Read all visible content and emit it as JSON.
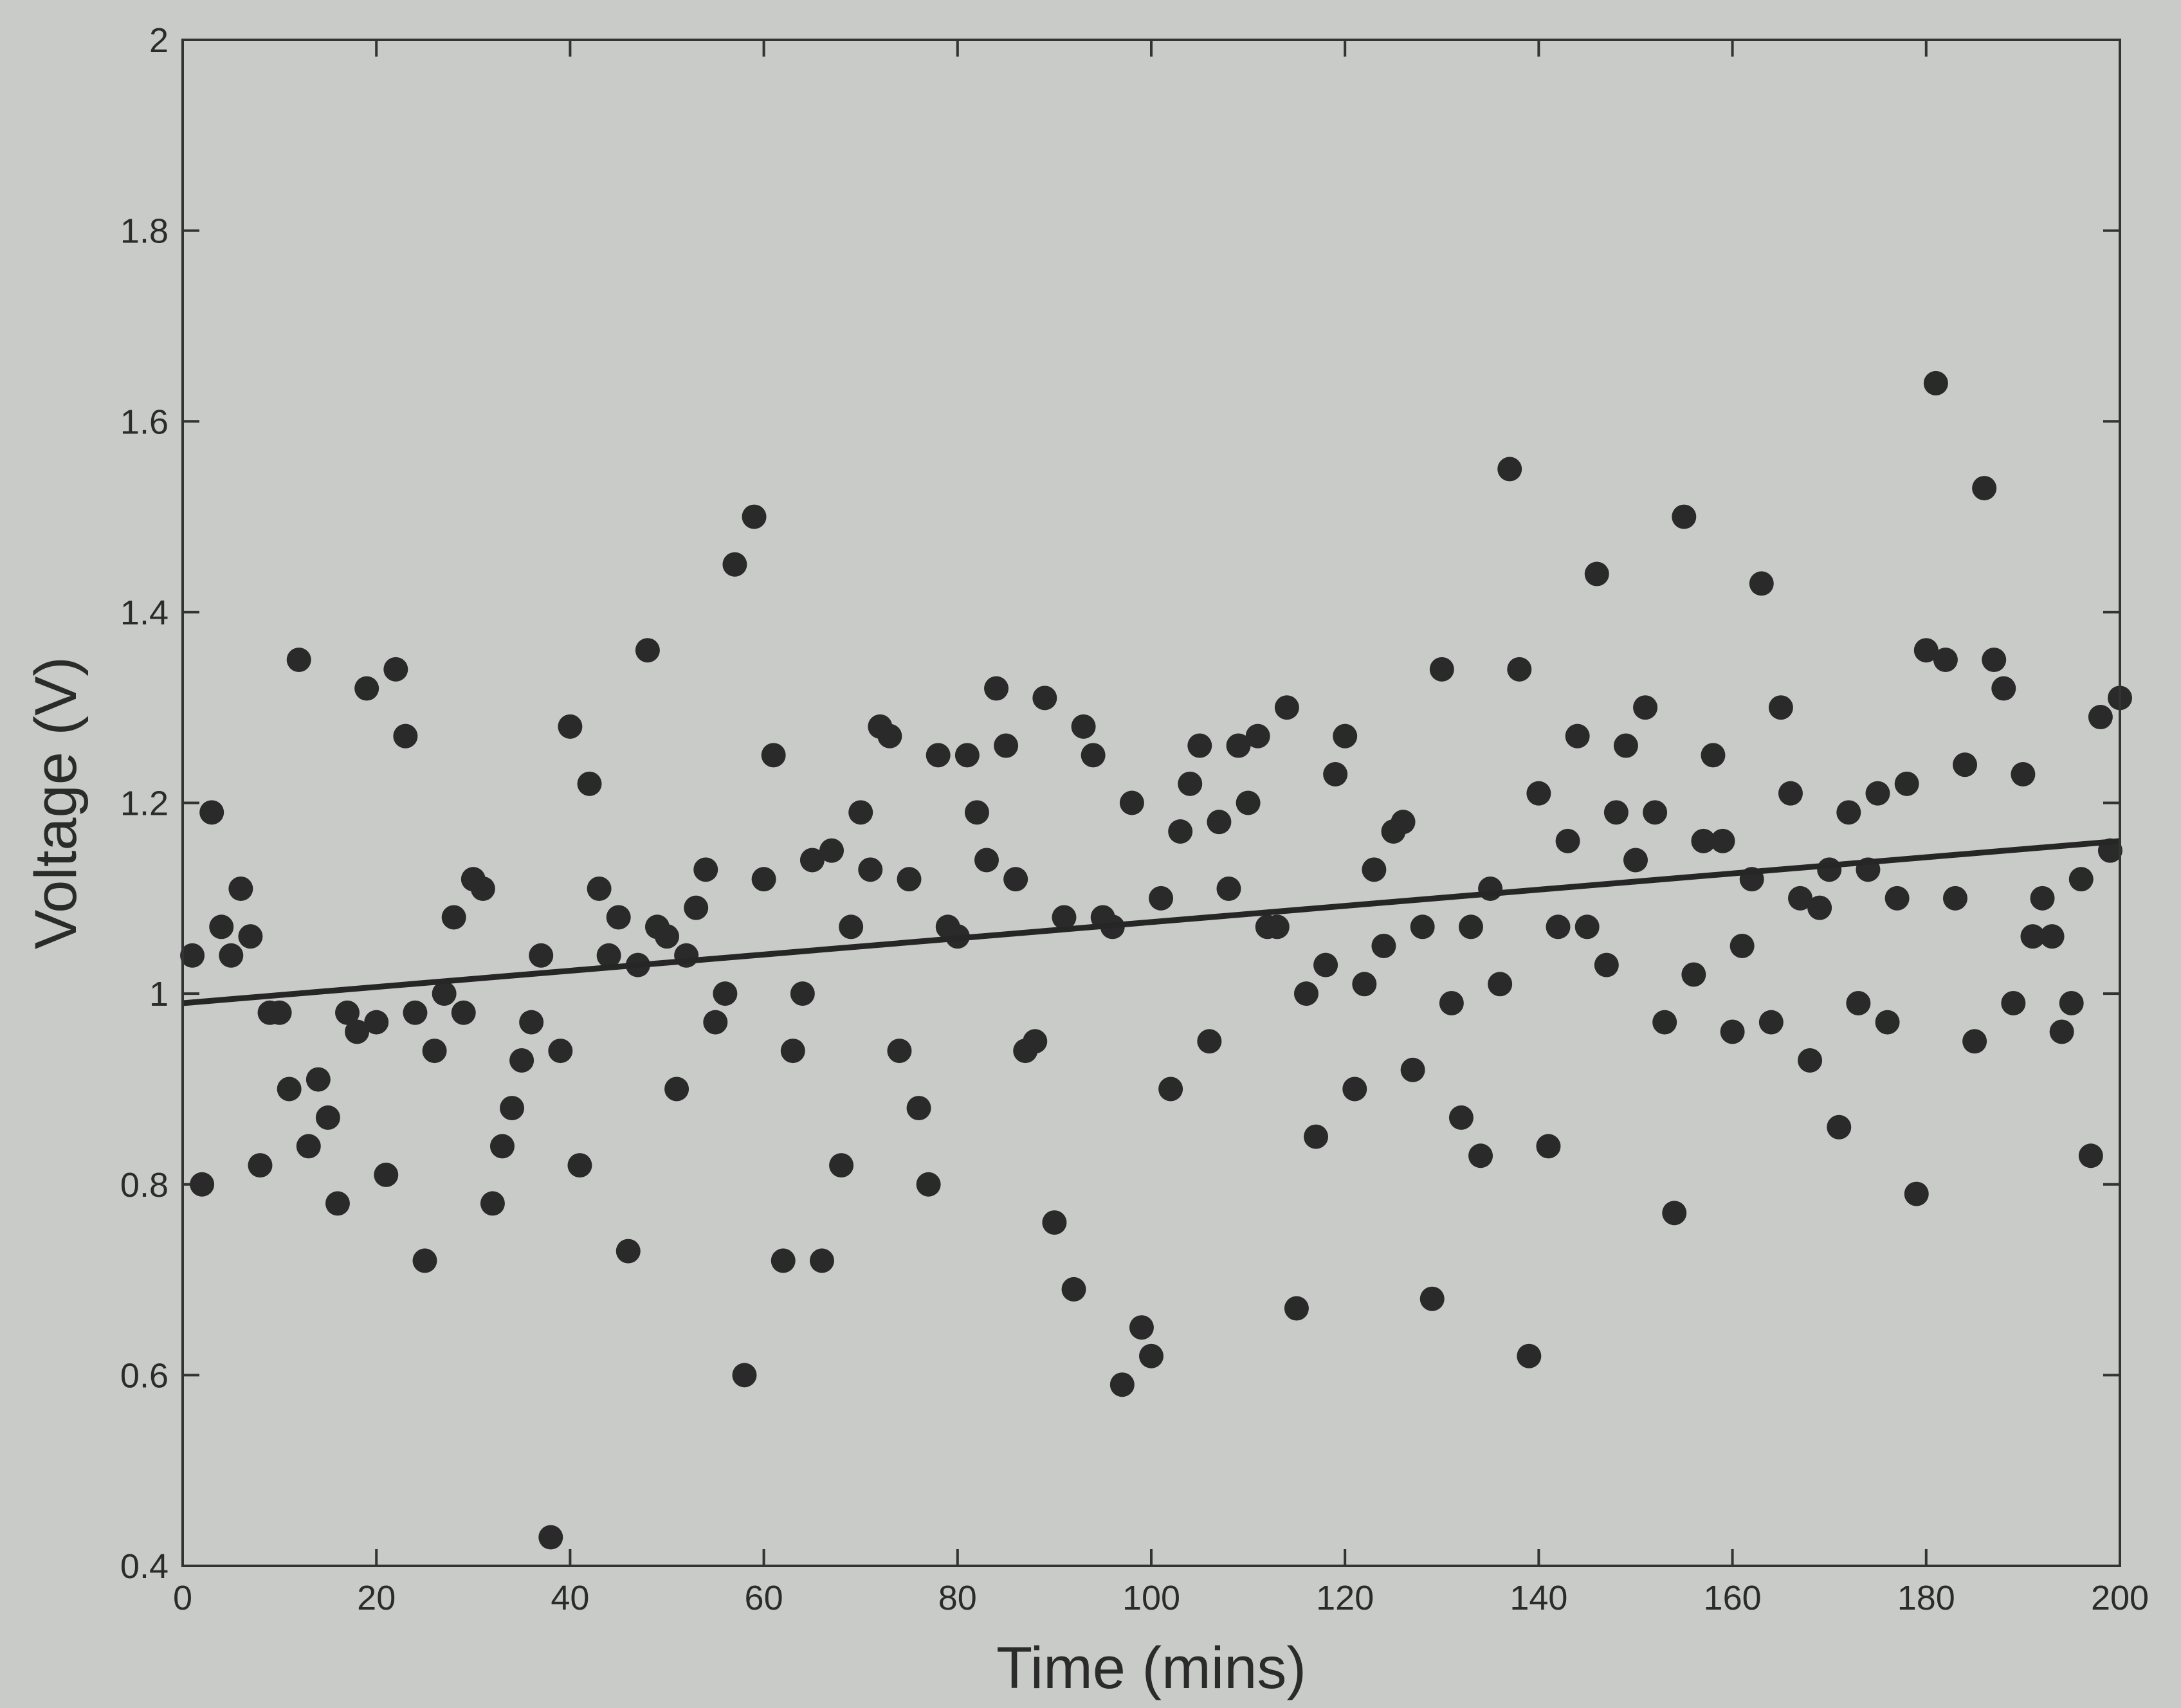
{
  "chart_data": {
    "type": "scatter",
    "title": "",
    "xlabel": "Time (mins)",
    "ylabel": "Voltage (V)",
    "xlim": [
      0,
      200
    ],
    "ylim": [
      0.4,
      2
    ],
    "xticks": [
      0,
      20,
      40,
      60,
      80,
      100,
      120,
      140,
      160,
      180,
      200
    ],
    "xtick_labels": [
      "0",
      "20",
      "40",
      "60",
      "80",
      "100",
      "120",
      "140",
      "160",
      "180",
      "200"
    ],
    "yticks": [
      0.4,
      0.6,
      0.8,
      1,
      1.2,
      1.4,
      1.6,
      1.8,
      2
    ],
    "ytick_labels": [
      "0.4",
      "0.6",
      "0.8",
      "1",
      "1.2",
      "1.4",
      "1.6",
      "1.8",
      "2"
    ],
    "grid": false,
    "legend": "none",
    "colors": {
      "background": "#c9cbc9",
      "marker": "#2a2a2a",
      "fit_line": "#262626",
      "axis": "#333333"
    },
    "series": [
      {
        "kind": "points",
        "points": [
          [
            1,
            1.04
          ],
          [
            2,
            0.8
          ],
          [
            3,
            1.19
          ],
          [
            4,
            1.07
          ],
          [
            5,
            1.04
          ],
          [
            6,
            1.11
          ],
          [
            7,
            1.06
          ],
          [
            8,
            0.82
          ],
          [
            9,
            0.98
          ],
          [
            10,
            0.98
          ],
          [
            11,
            0.9
          ],
          [
            12,
            1.35
          ],
          [
            13,
            0.84
          ],
          [
            14,
            0.91
          ],
          [
            15,
            0.87
          ],
          [
            16,
            0.78
          ],
          [
            17,
            0.98
          ],
          [
            18,
            0.96
          ],
          [
            19,
            1.32
          ],
          [
            20,
            0.97
          ],
          [
            21,
            0.81
          ],
          [
            22,
            1.34
          ],
          [
            23,
            1.27
          ],
          [
            24,
            0.98
          ],
          [
            25,
            0.72
          ],
          [
            26,
            0.94
          ],
          [
            27,
            1.0
          ],
          [
            28,
            1.08
          ],
          [
            29,
            0.98
          ],
          [
            30,
            1.12
          ],
          [
            31,
            1.11
          ],
          [
            32,
            0.78
          ],
          [
            33,
            0.84
          ],
          [
            34,
            0.88
          ],
          [
            35,
            0.93
          ],
          [
            36,
            0.97
          ],
          [
            37,
            1.04
          ],
          [
            38,
            0.43
          ],
          [
            39,
            0.94
          ],
          [
            40,
            1.28
          ],
          [
            41,
            0.82
          ],
          [
            42,
            1.22
          ],
          [
            43,
            1.11
          ],
          [
            44,
            1.04
          ],
          [
            45,
            1.08
          ],
          [
            46,
            0.73
          ],
          [
            47,
            1.03
          ],
          [
            48,
            1.36
          ],
          [
            49,
            1.07
          ],
          [
            50,
            1.06
          ],
          [
            51,
            0.9
          ],
          [
            52,
            1.04
          ],
          [
            53,
            1.09
          ],
          [
            54,
            1.13
          ],
          [
            55,
            0.97
          ],
          [
            56,
            1.0
          ],
          [
            57,
            1.45
          ],
          [
            58,
            0.6
          ],
          [
            59,
            1.5
          ],
          [
            60,
            1.12
          ],
          [
            61,
            1.25
          ],
          [
            62,
            0.72
          ],
          [
            63,
            0.94
          ],
          [
            64,
            1.0
          ],
          [
            65,
            1.14
          ],
          [
            66,
            0.72
          ],
          [
            67,
            1.15
          ],
          [
            68,
            0.82
          ],
          [
            69,
            1.07
          ],
          [
            70,
            1.19
          ],
          [
            71,
            1.13
          ],
          [
            72,
            1.28
          ],
          [
            73,
            1.27
          ],
          [
            74,
            0.94
          ],
          [
            75,
            1.12
          ],
          [
            76,
            0.88
          ],
          [
            77,
            0.8
          ],
          [
            78,
            1.25
          ],
          [
            79,
            1.07
          ],
          [
            80,
            1.06
          ],
          [
            81,
            1.25
          ],
          [
            82,
            1.19
          ],
          [
            83,
            1.14
          ],
          [
            84,
            1.32
          ],
          [
            85,
            1.26
          ],
          [
            86,
            1.12
          ],
          [
            87,
            0.94
          ],
          [
            88,
            0.95
          ],
          [
            89,
            1.31
          ],
          [
            90,
            0.76
          ],
          [
            91,
            1.08
          ],
          [
            92,
            0.69
          ],
          [
            93,
            1.28
          ],
          [
            94,
            1.25
          ],
          [
            95,
            1.08
          ],
          [
            96,
            1.07
          ],
          [
            97,
            0.59
          ],
          [
            98,
            1.2
          ],
          [
            99,
            0.65
          ],
          [
            100,
            0.62
          ],
          [
            101,
            1.1
          ],
          [
            102,
            0.9
          ],
          [
            103,
            1.17
          ],
          [
            104,
            1.22
          ],
          [
            105,
            1.26
          ],
          [
            106,
            0.95
          ],
          [
            107,
            1.18
          ],
          [
            108,
            1.11
          ],
          [
            109,
            1.26
          ],
          [
            110,
            1.2
          ],
          [
            111,
            1.27
          ],
          [
            112,
            1.07
          ],
          [
            113,
            1.07
          ],
          [
            114,
            1.3
          ],
          [
            115,
            0.67
          ],
          [
            116,
            1.0
          ],
          [
            117,
            0.85
          ],
          [
            118,
            1.03
          ],
          [
            119,
            1.23
          ],
          [
            120,
            1.27
          ],
          [
            121,
            0.9
          ],
          [
            122,
            1.01
          ],
          [
            123,
            1.13
          ],
          [
            124,
            1.05
          ],
          [
            125,
            1.17
          ],
          [
            126,
            1.18
          ],
          [
            127,
            0.92
          ],
          [
            128,
            1.07
          ],
          [
            129,
            0.68
          ],
          [
            130,
            1.34
          ],
          [
            131,
            0.99
          ],
          [
            132,
            0.87
          ],
          [
            133,
            1.07
          ],
          [
            134,
            0.83
          ],
          [
            135,
            1.11
          ],
          [
            136,
            1.01
          ],
          [
            137,
            1.55
          ],
          [
            138,
            1.34
          ],
          [
            139,
            0.62
          ],
          [
            140,
            1.21
          ],
          [
            141,
            0.84
          ],
          [
            142,
            1.07
          ],
          [
            143,
            1.16
          ],
          [
            144,
            1.27
          ],
          [
            145,
            1.07
          ],
          [
            146,
            1.44
          ],
          [
            147,
            1.03
          ],
          [
            148,
            1.19
          ],
          [
            149,
            1.26
          ],
          [
            150,
            1.14
          ],
          [
            151,
            1.3
          ],
          [
            152,
            1.19
          ],
          [
            153,
            0.97
          ],
          [
            154,
            0.77
          ],
          [
            155,
            1.5
          ],
          [
            156,
            1.02
          ],
          [
            157,
            1.16
          ],
          [
            158,
            1.25
          ],
          [
            159,
            1.16
          ],
          [
            160,
            0.96
          ],
          [
            161,
            1.05
          ],
          [
            162,
            1.12
          ],
          [
            163,
            1.43
          ],
          [
            164,
            0.97
          ],
          [
            165,
            1.3
          ],
          [
            166,
            1.21
          ],
          [
            167,
            1.1
          ],
          [
            168,
            0.93
          ],
          [
            169,
            1.09
          ],
          [
            170,
            1.13
          ],
          [
            171,
            0.86
          ],
          [
            172,
            1.19
          ],
          [
            173,
            0.99
          ],
          [
            174,
            1.13
          ],
          [
            175,
            1.21
          ],
          [
            176,
            0.97
          ],
          [
            177,
            1.1
          ],
          [
            178,
            1.22
          ],
          [
            179,
            0.79
          ],
          [
            180,
            1.36
          ],
          [
            181,
            1.64
          ],
          [
            182,
            1.35
          ],
          [
            183,
            1.1
          ],
          [
            184,
            1.24
          ],
          [
            185,
            0.95
          ],
          [
            186,
            1.53
          ],
          [
            187,
            1.35
          ],
          [
            188,
            1.32
          ],
          [
            189,
            0.99
          ],
          [
            190,
            1.23
          ],
          [
            191,
            1.06
          ],
          [
            192,
            1.1
          ],
          [
            193,
            1.06
          ],
          [
            194,
            0.96
          ],
          [
            195,
            0.99
          ],
          [
            196,
            1.12
          ],
          [
            197,
            0.83
          ],
          [
            198,
            1.29
          ],
          [
            199,
            1.15
          ],
          [
            200,
            1.31
          ]
        ]
      },
      {
        "kind": "fit-line",
        "points": [
          [
            0,
            0.99
          ],
          [
            200,
            1.16
          ]
        ]
      }
    ]
  }
}
